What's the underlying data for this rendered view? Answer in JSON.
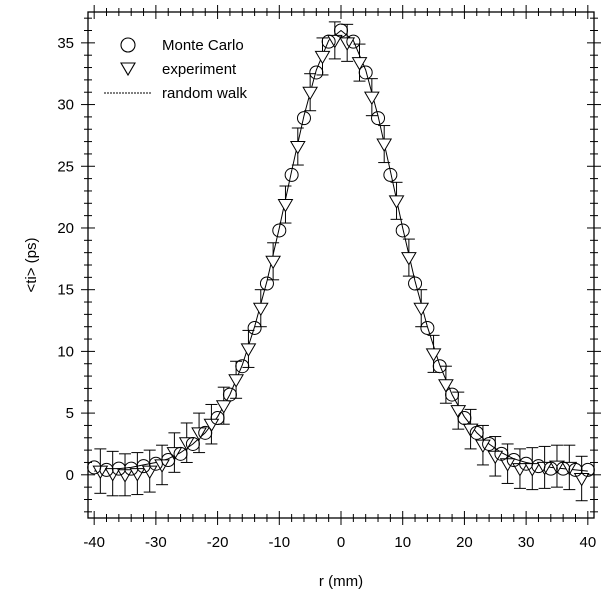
{
  "chart_data": {
    "type": "scatter",
    "title": "",
    "xlabel": "r (mm)",
    "ylabel": "<ti> (ps)",
    "xlim": [
      -41,
      41
    ],
    "ylim": [
      -3.5,
      37.5
    ],
    "xticks": [
      -40,
      -30,
      -20,
      -10,
      0,
      10,
      20,
      30,
      40
    ],
    "yticks": [
      0,
      5,
      10,
      15,
      20,
      25,
      30,
      35
    ],
    "grid": false,
    "legend": "top-left",
    "series": [
      {
        "name": "Monte Carlo",
        "marker": "circle",
        "x": [
          -40,
          -38,
          -36,
          -34,
          -32,
          -30,
          -28,
          -26,
          -24,
          -22,
          -20,
          -18,
          -16,
          -14,
          -12,
          -10,
          -8,
          -6,
          -4,
          -2,
          0,
          2,
          4,
          6,
          8,
          10,
          12,
          14,
          16,
          18,
          20,
          22,
          24,
          26,
          28,
          30,
          32,
          34,
          36,
          38,
          40
        ],
        "y": [
          0.6,
          0.4,
          0.5,
          0.5,
          0.7,
          0.9,
          1.2,
          1.7,
          2.5,
          3.4,
          4.6,
          6.5,
          8.8,
          11.9,
          15.5,
          19.8,
          24.3,
          28.9,
          32.6,
          35.1,
          36.0,
          35.1,
          32.6,
          28.9,
          24.3,
          19.8,
          15.5,
          11.9,
          8.8,
          6.5,
          4.6,
          3.4,
          2.5,
          1.7,
          1.2,
          0.9,
          0.7,
          0.5,
          0.5,
          0.4,
          0.4
        ]
      },
      {
        "name": "experiment",
        "marker": "triangle-down",
        "x": [
          -39,
          -37,
          -35,
          -33,
          -31,
          -29,
          -27,
          -25,
          -23,
          -21,
          -19,
          -17,
          -15,
          -13,
          -11,
          -9,
          -7,
          -5,
          -3,
          -1,
          1,
          3,
          5,
          7,
          9,
          11,
          13,
          15,
          17,
          19,
          21,
          23,
          25,
          27,
          29,
          31,
          33,
          35,
          37,
          39
        ],
        "y": [
          0.3,
          0.1,
          0.0,
          0.1,
          0.3,
          0.8,
          1.8,
          2.6,
          3.4,
          4.1,
          5.6,
          7.7,
          10.2,
          13.5,
          17.3,
          21.9,
          26.6,
          31.0,
          33.9,
          35.2,
          35.0,
          33.4,
          30.6,
          26.8,
          22.2,
          17.6,
          13.5,
          9.8,
          7.3,
          5.2,
          3.7,
          2.4,
          1.5,
          0.9,
          0.5,
          0.5,
          0.6,
          0.7,
          0.6,
          -0.3
        ],
        "yerr": [
          1.8,
          1.8,
          1.7,
          1.7,
          1.7,
          1.6,
          1.6,
          1.6,
          1.6,
          1.6,
          1.5,
          1.5,
          1.5,
          1.5,
          1.5,
          1.5,
          1.5,
          1.5,
          1.5,
          1.5,
          1.5,
          1.5,
          1.5,
          1.5,
          1.5,
          1.5,
          1.5,
          1.5,
          1.5,
          1.5,
          1.6,
          1.6,
          1.6,
          1.6,
          1.6,
          1.7,
          1.7,
          1.7,
          1.8,
          1.8
        ]
      },
      {
        "name": "random walk",
        "marker": "line",
        "x": [
          -40,
          -38,
          -36,
          -34,
          -32,
          -30,
          -28,
          -26,
          -24,
          -22,
          -20,
          -18,
          -16,
          -14,
          -12,
          -10,
          -8,
          -6,
          -4,
          -2,
          0,
          2,
          4,
          6,
          8,
          10,
          12,
          14,
          16,
          18,
          20,
          22,
          24,
          26,
          28,
          30,
          32,
          34,
          36,
          38,
          40
        ],
        "y": [
          0.3,
          0.4,
          0.5,
          0.6,
          0.8,
          1.0,
          1.3,
          1.8,
          2.5,
          3.4,
          4.7,
          6.5,
          8.9,
          12.0,
          15.7,
          20.0,
          24.6,
          29.1,
          32.8,
          35.2,
          36.0,
          35.2,
          32.8,
          29.1,
          24.6,
          20.0,
          15.7,
          12.0,
          8.9,
          6.5,
          4.7,
          3.4,
          2.5,
          1.8,
          1.3,
          1.0,
          0.8,
          0.6,
          0.5,
          0.4,
          0.3
        ]
      }
    ]
  }
}
